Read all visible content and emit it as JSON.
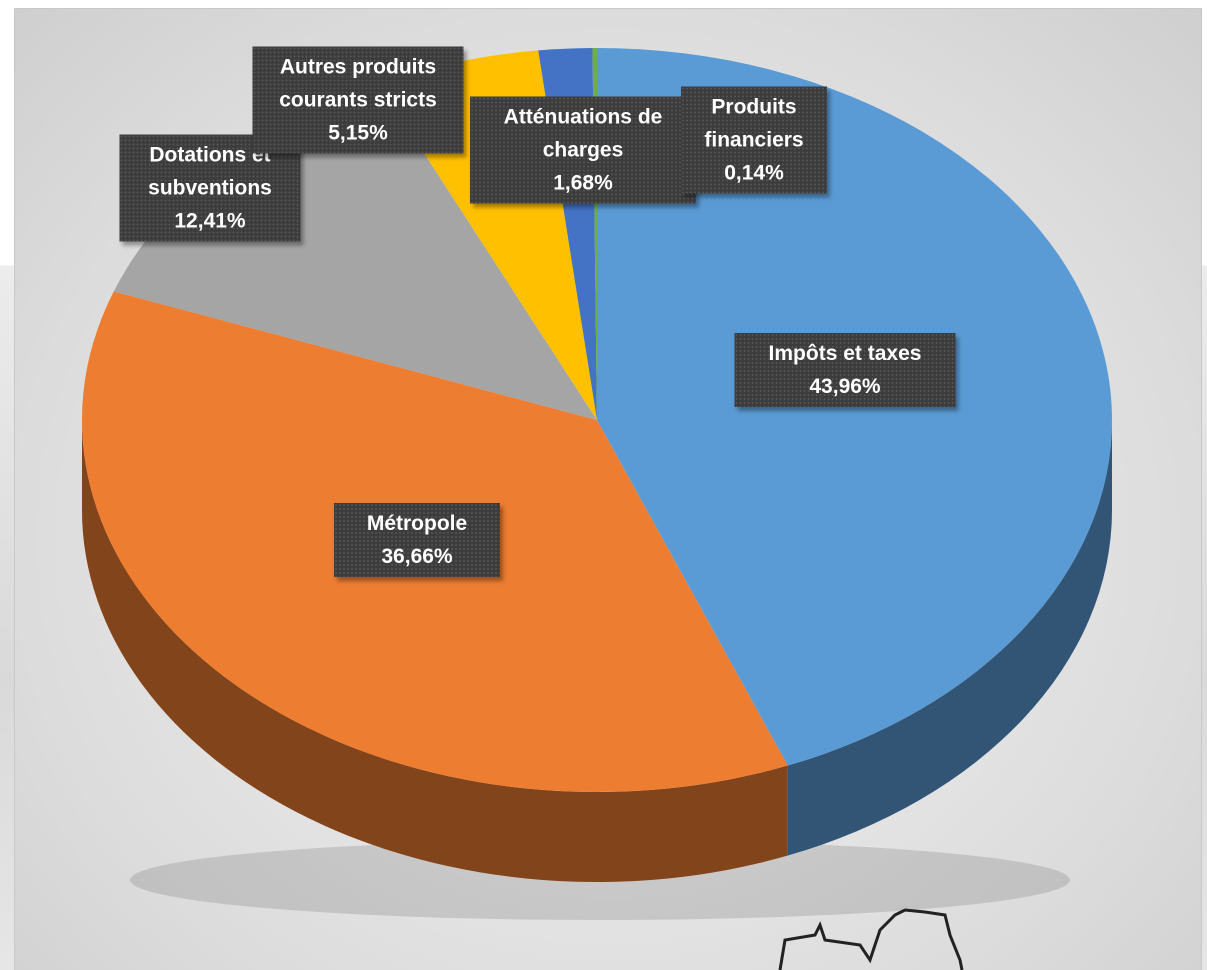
{
  "chart_data": {
    "type": "pie",
    "categories": [
      "Impôts et taxes",
      "Métropole",
      "Dotations et subventions",
      "Autres produits courants stricts",
      "Atténuations de charges",
      "Produits financiers"
    ],
    "values": [
      43.96,
      36.66,
      12.41,
      5.15,
      1.68,
      0.14
    ],
    "value_labels": [
      "43,96%",
      "36,66%",
      "12,41%",
      "5,15%",
      "1,68%",
      "0,14%"
    ],
    "colors": [
      "#5b9bd5",
      "#ed7d31",
      "#a5a5a5",
      "#ffc000",
      "#4472c4",
      "#70ad47"
    ]
  }
}
